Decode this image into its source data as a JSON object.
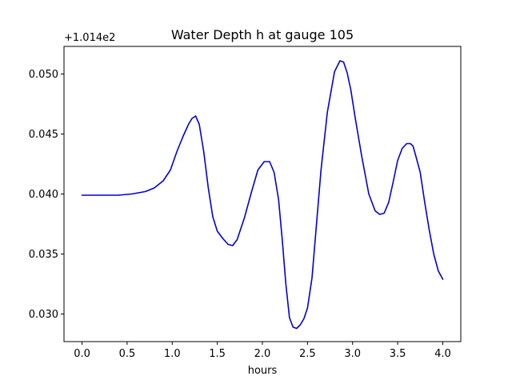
{
  "chart_data": {
    "type": "line",
    "title": "Water Depth h at gauge 105",
    "xlabel": "hours",
    "ylabel": "",
    "y_offset_label": "+1.014e2",
    "xlim": [
      -0.2,
      4.2
    ],
    "ylim": [
      0.0277,
      0.0523
    ],
    "xticks": [
      0.0,
      0.5,
      1.0,
      1.5,
      2.0,
      2.5,
      3.0,
      3.5,
      4.0
    ],
    "xtick_labels": [
      "0.0",
      "0.5",
      "1.0",
      "1.5",
      "2.0",
      "2.5",
      "3.0",
      "3.5",
      "4.0"
    ],
    "yticks": [
      0.03,
      0.035,
      0.04,
      0.045,
      0.05
    ],
    "ytick_labels": [
      "0.030",
      "0.035",
      "0.040",
      "0.045",
      "0.050"
    ],
    "grid": false,
    "series": [
      {
        "color": "#0000dd",
        "x": [
          0.0,
          0.2,
          0.4,
          0.55,
          0.7,
          0.8,
          0.9,
          0.98,
          1.05,
          1.12,
          1.18,
          1.22,
          1.26,
          1.3,
          1.35,
          1.4,
          1.45,
          1.5,
          1.56,
          1.62,
          1.67,
          1.72,
          1.8,
          1.88,
          1.95,
          2.02,
          2.08,
          2.13,
          2.18,
          2.22,
          2.26,
          2.3,
          2.34,
          2.38,
          2.42,
          2.46,
          2.5,
          2.55,
          2.6,
          2.65,
          2.72,
          2.8,
          2.86,
          2.9,
          2.94,
          2.98,
          3.03,
          3.1,
          3.18,
          3.25,
          3.3,
          3.35,
          3.4,
          3.45,
          3.5,
          3.55,
          3.6,
          3.64,
          3.67,
          3.7,
          3.75,
          3.8,
          3.85,
          3.9,
          3.95,
          4.0
        ],
        "y": [
          0.0399,
          0.0399,
          0.0399,
          0.04,
          0.0402,
          0.0405,
          0.0411,
          0.042,
          0.0435,
          0.0448,
          0.0458,
          0.0463,
          0.0465,
          0.0458,
          0.0435,
          0.0405,
          0.0381,
          0.0369,
          0.0363,
          0.0358,
          0.0357,
          0.0362,
          0.038,
          0.0402,
          0.042,
          0.0427,
          0.0427,
          0.0418,
          0.0395,
          0.0362,
          0.0325,
          0.0297,
          0.0289,
          0.0288,
          0.0291,
          0.0296,
          0.0305,
          0.033,
          0.0375,
          0.042,
          0.0468,
          0.0502,
          0.0511,
          0.051,
          0.0501,
          0.0487,
          0.0463,
          0.0432,
          0.04,
          0.0386,
          0.0383,
          0.0384,
          0.0393,
          0.041,
          0.0428,
          0.0438,
          0.0442,
          0.0442,
          0.044,
          0.0432,
          0.0418,
          0.0393,
          0.037,
          0.035,
          0.0336,
          0.0329
        ]
      }
    ]
  }
}
